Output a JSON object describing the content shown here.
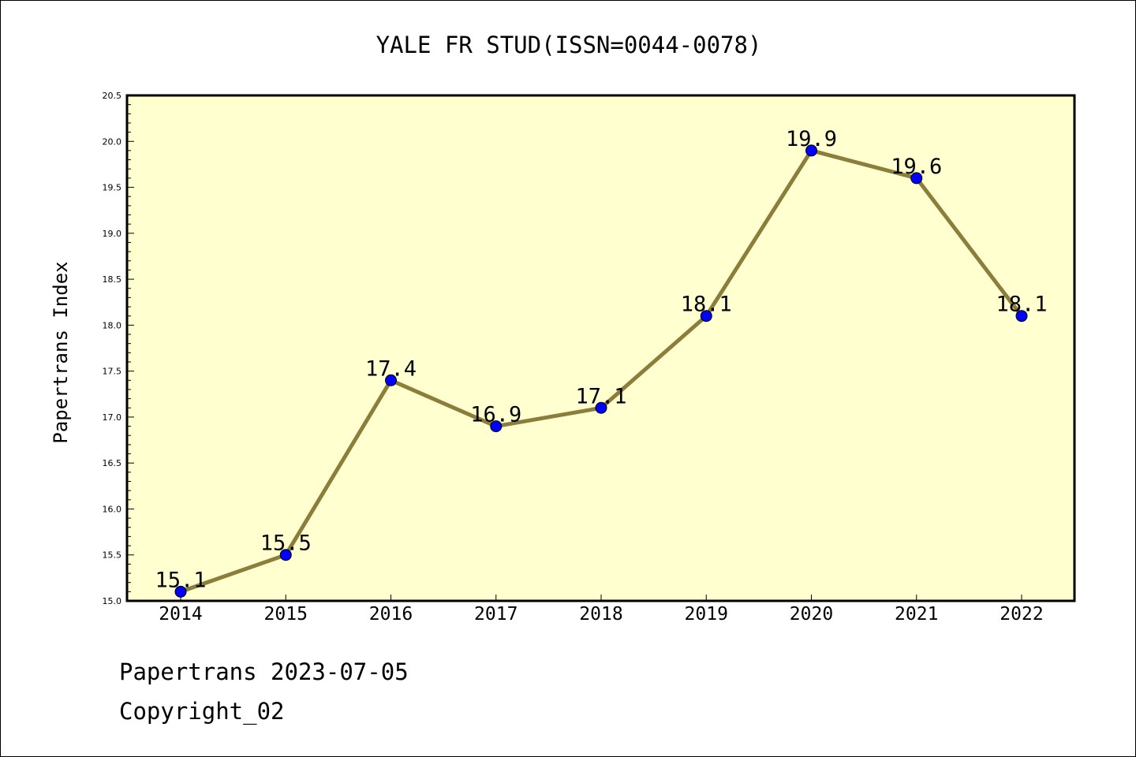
{
  "chart_data": {
    "type": "line",
    "title": "YALE FR STUD(ISSN=0044-0078)",
    "xlabel": "",
    "ylabel": "Papertrans Index",
    "categories": [
      "2014",
      "2015",
      "2016",
      "2017",
      "2018",
      "2019",
      "2020",
      "2021",
      "2022"
    ],
    "values": [
      15.1,
      15.5,
      17.4,
      16.9,
      17.1,
      18.1,
      19.9,
      19.6,
      18.1
    ],
    "data_labels": [
      "15.1",
      "15.5",
      "17.4",
      "16.9",
      "17.1",
      "18.1",
      "19.9",
      "19.6",
      "18.1"
    ],
    "ylim": [
      15.0,
      20.5
    ],
    "yticks": [
      "15.0",
      "15.5",
      "16.0",
      "16.5",
      "17.0",
      "17.5",
      "18.0",
      "18.5",
      "19.0",
      "19.5",
      "20.0",
      "20.5"
    ],
    "grid": false,
    "legend": "none",
    "colors": {
      "plot_background": "#ffffd0",
      "line": "#8b7d3a",
      "marker": "#0000ff",
      "axis": "#000000"
    }
  },
  "footer": {
    "source_line": "Papertrans 2023-07-05",
    "copyright_line": "Copyright_02"
  }
}
